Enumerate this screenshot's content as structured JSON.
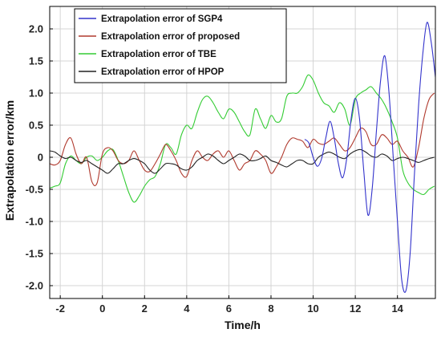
{
  "chart_data": {
    "type": "line",
    "title": "",
    "xlabel": "Time/h",
    "ylabel": "Extrapolation error/km",
    "xlim": [
      -2.5,
      15.8
    ],
    "ylim": [
      -2.2,
      2.35
    ],
    "xticks": [
      -2,
      0,
      2,
      4,
      6,
      8,
      10,
      12,
      14
    ],
    "yticks": [
      -2.0,
      -1.5,
      -1.0,
      -0.5,
      0,
      0.5,
      1.0,
      1.5,
      2.0
    ],
    "ytick_labels": [
      "-2.0",
      "-1.5",
      "-1.0",
      "-0.5",
      "0",
      "0.5",
      "1.0",
      "1.5",
      "2.0"
    ],
    "grid": true,
    "legend_position": "top-left",
    "series": [
      {
        "name": "Extrapolation error of SGP4",
        "color": "#3333cc",
        "x": [
          9.6,
          9.8,
          10.0,
          10.2,
          10.4,
          10.6,
          10.8,
          11.0,
          11.2,
          11.4,
          11.6,
          11.8,
          12.0,
          12.2,
          12.4,
          12.6,
          12.8,
          13.0,
          13.2,
          13.4,
          13.6,
          13.8,
          14.0,
          14.2,
          14.4,
          14.6,
          14.8,
          15.0,
          15.2,
          15.4,
          15.6,
          15.8
        ],
        "y": [
          0.28,
          0.22,
          0.0,
          -0.14,
          -0.02,
          0.3,
          0.56,
          0.3,
          -0.1,
          -0.32,
          0.0,
          0.6,
          0.92,
          0.6,
          -0.2,
          -0.9,
          -0.5,
          0.4,
          1.2,
          1.58,
          1.0,
          0.0,
          -1.0,
          -1.9,
          -2.08,
          -1.5,
          -0.3,
          0.8,
          1.6,
          2.1,
          1.8,
          1.25
        ]
      },
      {
        "name": "Extrapolation error of proposed",
        "color": "#b03a2e",
        "x": [
          -2.5,
          -2.25,
          -2.0,
          -1.75,
          -1.5,
          -1.25,
          -1.0,
          -0.75,
          -0.5,
          -0.25,
          0.0,
          0.25,
          0.5,
          0.75,
          1.0,
          1.25,
          1.5,
          1.75,
          2.0,
          2.25,
          2.5,
          2.75,
          3.0,
          3.25,
          3.5,
          3.75,
          4.0,
          4.25,
          4.5,
          4.75,
          5.0,
          5.25,
          5.5,
          5.75,
          6.0,
          6.25,
          6.5,
          6.75,
          7.0,
          7.25,
          7.5,
          7.75,
          8.0,
          8.25,
          8.5,
          8.75,
          9.0,
          9.25,
          9.5,
          9.75,
          10.0,
          10.25,
          10.5,
          10.75,
          11.0,
          11.25,
          11.5,
          11.75,
          12.0,
          12.25,
          12.5,
          12.75,
          13.0,
          13.25,
          13.5,
          13.75,
          14.0,
          14.25,
          14.5,
          14.75,
          15.0,
          15.25,
          15.5,
          15.75
        ],
        "y": [
          -0.1,
          -0.12,
          -0.05,
          0.2,
          0.3,
          0.05,
          -0.1,
          0.0,
          -0.38,
          -0.4,
          0.05,
          0.15,
          0.1,
          -0.05,
          -0.1,
          -0.05,
          0.1,
          -0.05,
          -0.2,
          -0.22,
          -0.1,
          0.05,
          0.2,
          0.1,
          -0.05,
          -0.25,
          -0.3,
          -0.05,
          0.1,
          0.0,
          -0.05,
          0.05,
          0.1,
          0.0,
          0.1,
          -0.05,
          -0.2,
          -0.1,
          -0.05,
          0.1,
          0.05,
          -0.05,
          -0.25,
          -0.15,
          0.0,
          0.2,
          0.3,
          0.28,
          0.25,
          0.15,
          0.28,
          0.22,
          0.2,
          0.25,
          0.3,
          0.2,
          0.1,
          0.15,
          0.3,
          0.45,
          0.4,
          0.2,
          0.2,
          0.35,
          0.3,
          0.2,
          0.25,
          0.1,
          0.0,
          -0.15,
          0.15,
          0.6,
          0.9,
          1.0
        ]
      },
      {
        "name": "Extrapolation error of TBE",
        "color": "#33cc33",
        "x": [
          -2.5,
          -2.25,
          -2.0,
          -1.75,
          -1.5,
          -1.25,
          -1.0,
          -0.75,
          -0.5,
          -0.25,
          0.0,
          0.25,
          0.5,
          0.75,
          1.0,
          1.25,
          1.5,
          1.75,
          2.0,
          2.25,
          2.5,
          2.75,
          3.0,
          3.25,
          3.5,
          3.75,
          4.0,
          4.25,
          4.5,
          4.75,
          5.0,
          5.25,
          5.5,
          5.75,
          6.0,
          6.25,
          6.5,
          6.75,
          7.0,
          7.25,
          7.5,
          7.75,
          8.0,
          8.25,
          8.5,
          8.75,
          9.0,
          9.25,
          9.5,
          9.75,
          10.0,
          10.25,
          10.5,
          10.75,
          11.0,
          11.25,
          11.5,
          11.75,
          12.0,
          12.25,
          12.5,
          12.75,
          13.0,
          13.25,
          13.5,
          13.75,
          14.0,
          14.25,
          14.5,
          14.75,
          15.0,
          15.25,
          15.5,
          15.75
        ],
        "y": [
          -0.48,
          -0.45,
          -0.4,
          -0.1,
          0.02,
          -0.05,
          -0.1,
          0.0,
          0.02,
          -0.05,
          0.0,
          0.1,
          0.12,
          -0.05,
          -0.3,
          -0.55,
          -0.7,
          -0.6,
          -0.45,
          -0.35,
          -0.3,
          -0.1,
          0.2,
          0.15,
          0.05,
          0.35,
          0.5,
          0.45,
          0.7,
          0.9,
          0.95,
          0.85,
          0.7,
          0.6,
          0.75,
          0.7,
          0.55,
          0.4,
          0.35,
          0.75,
          0.6,
          0.45,
          0.65,
          0.55,
          0.6,
          0.95,
          1.0,
          1.0,
          1.1,
          1.28,
          1.2,
          1.0,
          0.85,
          0.8,
          0.7,
          0.85,
          0.75,
          0.5,
          0.9,
          1.0,
          1.05,
          1.1,
          1.0,
          0.9,
          0.75,
          0.55,
          0.3,
          -0.2,
          -0.4,
          -0.5,
          -0.55,
          -0.58,
          -0.5,
          -0.45
        ]
      },
      {
        "name": "Extrapolation error of HPOP",
        "color": "#222222",
        "x": [
          -2.5,
          -2.25,
          -2.0,
          -1.75,
          -1.5,
          -1.25,
          -1.0,
          -0.75,
          -0.5,
          -0.25,
          0.0,
          0.25,
          0.5,
          0.75,
          1.0,
          1.25,
          1.5,
          1.75,
          2.0,
          2.25,
          2.5,
          2.75,
          3.0,
          3.25,
          3.5,
          3.75,
          4.0,
          4.25,
          4.5,
          4.75,
          5.0,
          5.25,
          5.5,
          5.75,
          6.0,
          6.25,
          6.5,
          6.75,
          7.0,
          7.25,
          7.5,
          7.75,
          8.0,
          8.25,
          8.5,
          8.75,
          9.0,
          9.25,
          9.5,
          9.75,
          10.0,
          10.25,
          10.5,
          10.75,
          11.0,
          11.25,
          11.5,
          11.75,
          12.0,
          12.25,
          12.5,
          12.75,
          13.0,
          13.25,
          13.5,
          13.75,
          14.0,
          14.25,
          14.5,
          14.75,
          15.0,
          15.25,
          15.5,
          15.75
        ],
        "y": [
          0.1,
          0.08,
          0.02,
          -0.02,
          0.0,
          -0.05,
          -0.08,
          -0.05,
          -0.1,
          -0.15,
          -0.2,
          -0.25,
          -0.18,
          -0.1,
          -0.1,
          -0.05,
          -0.02,
          -0.05,
          -0.1,
          -0.2,
          -0.25,
          -0.18,
          -0.1,
          -0.1,
          -0.12,
          -0.18,
          -0.2,
          -0.15,
          -0.05,
          0.0,
          0.05,
          0.02,
          -0.05,
          -0.1,
          -0.05,
          0.0,
          0.05,
          0.02,
          -0.05,
          -0.05,
          -0.02,
          0.02,
          -0.05,
          -0.08,
          -0.12,
          -0.15,
          -0.1,
          -0.05,
          -0.05,
          -0.1,
          -0.1,
          0.0,
          0.05,
          0.08,
          0.05,
          0.0,
          -0.02,
          0.05,
          0.1,
          0.12,
          0.08,
          0.02,
          0.0,
          0.05,
          0.02,
          -0.05,
          -0.02,
          0.0,
          -0.02,
          -0.05,
          -0.08,
          -0.05,
          -0.02,
          0.0
        ]
      }
    ]
  }
}
